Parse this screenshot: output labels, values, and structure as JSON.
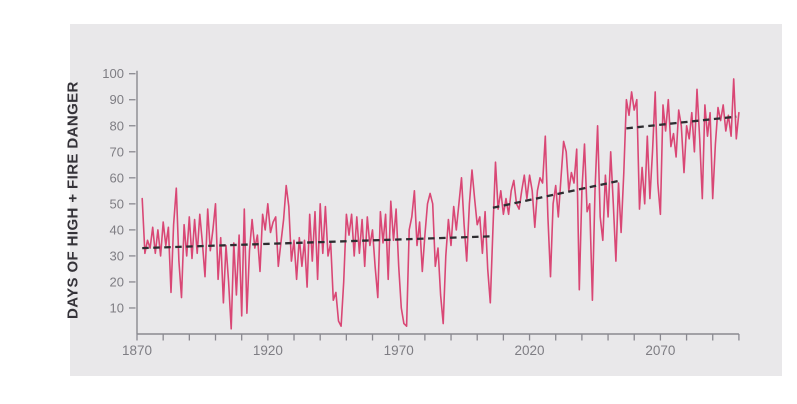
{
  "theme": {
    "page_background": "#ffffff",
    "panel_background": "#e9e8ea",
    "line_color": "#d94775",
    "trend_color": "#2e2d31",
    "axis_color": "#8a8990",
    "tick_label_color": "#7e7d83",
    "axis_title_color": "#343238"
  },
  "chart_data": {
    "type": "line",
    "title": "",
    "ylabel": "DAYS OF HIGH + FIRE DANGER",
    "xlabel": "",
    "xlim": [
      1870,
      2100
    ],
    "ylim": [
      0,
      100
    ],
    "grid": false,
    "legend": "none",
    "x_tick_interval": 10,
    "x_label_ticks": [
      1870,
      1920,
      1970,
      2020,
      2070
    ],
    "y_ticks": [
      10,
      20,
      30,
      40,
      50,
      60,
      70,
      80,
      90,
      100
    ],
    "series": [
      {
        "name": "annual-days-of-high-plus-fire-danger",
        "color": "#d94775",
        "x_start": 1872,
        "x_step": 1,
        "values": [
          52,
          31,
          36,
          33,
          41,
          31,
          40,
          30,
          43,
          34,
          41,
          16,
          42,
          56,
          28,
          14,
          42,
          30,
          45,
          29,
          44,
          31,
          46,
          35,
          22,
          48,
          32,
          40,
          50,
          21,
          37,
          12,
          34,
          20,
          2,
          35,
          15,
          38,
          7,
          48,
          8,
          32,
          44,
          33,
          38,
          24,
          46,
          40,
          50,
          39,
          43,
          45,
          26,
          35,
          44,
          57,
          49,
          28,
          36,
          21,
          37,
          26,
          36,
          18,
          46,
          28,
          47,
          21,
          50,
          31,
          49,
          30,
          35,
          13,
          16,
          5,
          3,
          20,
          46,
          38,
          46,
          30,
          45,
          31,
          44,
          26,
          45,
          34,
          40,
          26,
          14,
          47,
          35,
          46,
          21,
          51,
          36,
          48,
          26,
          10,
          4,
          3,
          40,
          45,
          55,
          34,
          43,
          24,
          38,
          50,
          54,
          50,
          26,
          33,
          15,
          4,
          30,
          44,
          34,
          49,
          40,
          50,
          60,
          42,
          28,
          50,
          63,
          52,
          42,
          45,
          31,
          47,
          25,
          12,
          40,
          66,
          48,
          55,
          46,
          52,
          46,
          55,
          59,
          50,
          48,
          55,
          61,
          52,
          61,
          55,
          41,
          55,
          60,
          58,
          76,
          45,
          22,
          50,
          57,
          45,
          60,
          74,
          70,
          55,
          62,
          58,
          71,
          17,
          55,
          73,
          47,
          50,
          13,
          55,
          80,
          45,
          36,
          61,
          45,
          70,
          50,
          28,
          58,
          39,
          62,
          90,
          84,
          93,
          86,
          90,
          48,
          64,
          50,
          76,
          52,
          70,
          93,
          58,
          46,
          88,
          78,
          90,
          72,
          77,
          68,
          86,
          80,
          62,
          80,
          75,
          85,
          70,
          94,
          75,
          52,
          88,
          76,
          85,
          52,
          73,
          87,
          82,
          88,
          78,
          84,
          76,
          98,
          75,
          85
        ]
      }
    ],
    "trend_segments": [
      {
        "name": "historical-trend",
        "x": [
          1872,
          2005
        ],
        "values": [
          33,
          37.5
        ]
      },
      {
        "name": "mid-century-trend",
        "x": [
          2006,
          2055
        ],
        "values": [
          48.5,
          59
        ]
      },
      {
        "name": "late-century-trend",
        "x": [
          2057,
          2099
        ],
        "values": [
          79,
          83.5
        ]
      }
    ]
  }
}
